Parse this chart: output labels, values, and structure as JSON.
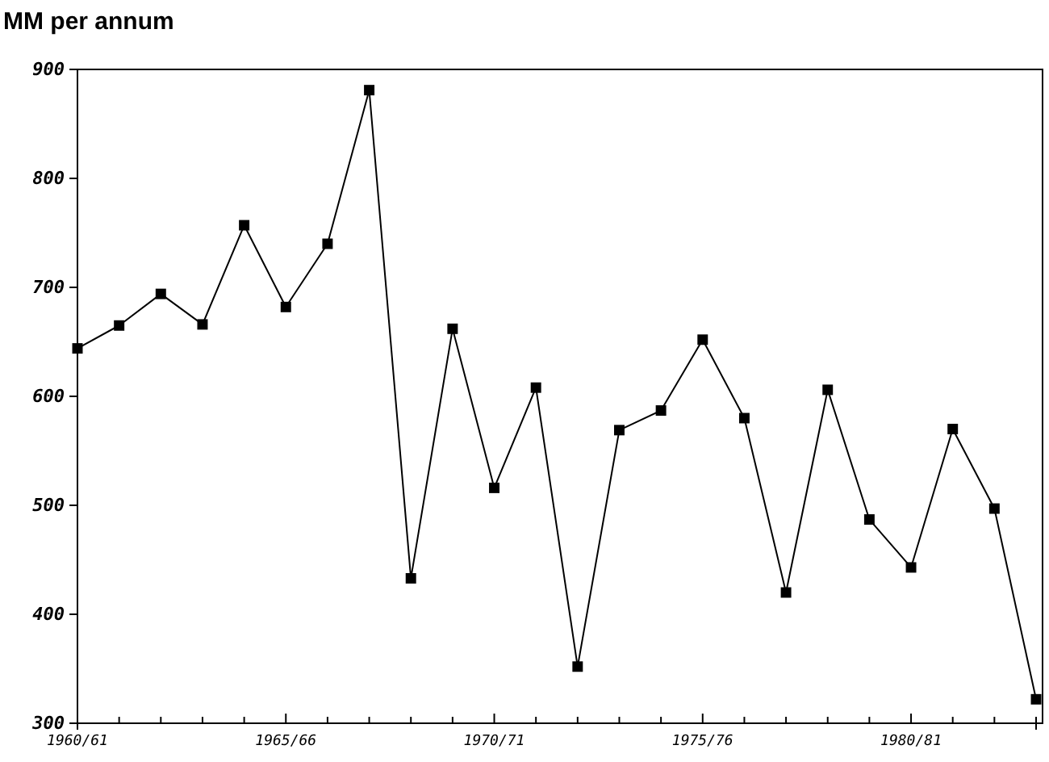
{
  "chart_data": {
    "type": "line",
    "title": "MM per annum",
    "categories": [
      "1960/61",
      null,
      null,
      null,
      null,
      "1965/66",
      null,
      null,
      null,
      null,
      "1970/71",
      null,
      null,
      null,
      null,
      "1975/76",
      null,
      null,
      null,
      null,
      "1980/81",
      null,
      null,
      null
    ],
    "series": [
      {
        "color": "#000000",
        "values": [
          644,
          665,
          694,
          666,
          757,
          682,
          740,
          881,
          433,
          662,
          516,
          608,
          352,
          569,
          587,
          652,
          580,
          420,
          606,
          487,
          443,
          570,
          497,
          322
        ]
      }
    ],
    "ylim": [
      300,
      900
    ],
    "yticks": [
      300,
      400,
      500,
      600,
      700,
      800,
      900
    ],
    "marker": "square",
    "line_style": "solid"
  }
}
